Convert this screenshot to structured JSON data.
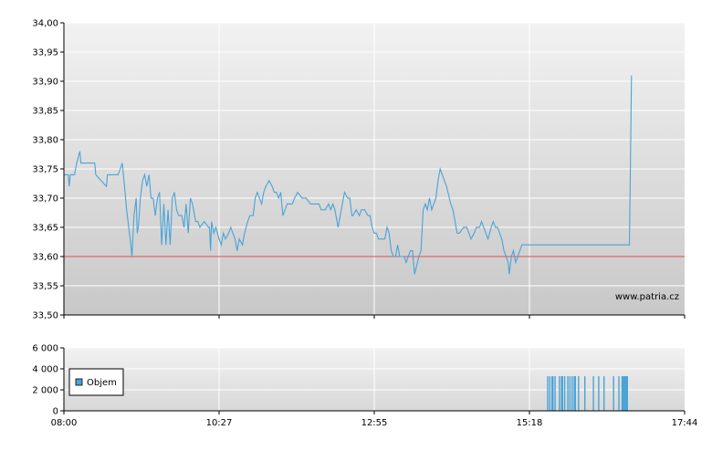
{
  "watermark": "www.patria.cz",
  "colors": {
    "price_line": "#4aa3d6",
    "reference_line": "#e05050",
    "volume_bar": "#4aa3d6",
    "plot_bg_top": "#f2f2f2",
    "plot_bg_bottom": "#c8c8c8",
    "grid": "#ffffff"
  },
  "chart_data": [
    {
      "type": "line",
      "name": "price",
      "x_ticks": [
        "08:00",
        "10:27",
        "12:55",
        "15:18",
        "17:44"
      ],
      "y_ticks": [
        "33,50",
        "33,55",
        "33,60",
        "33,65",
        "33,70",
        "33,75",
        "33,80",
        "33,85",
        "33,90",
        "33,95",
        "34,00"
      ],
      "ylim": [
        33.5,
        34.0
      ],
      "reference_value": 33.6,
      "x_unit": "minutes after 08:00",
      "points": [
        [
          0,
          33.74
        ],
        [
          4,
          33.74
        ],
        [
          5,
          33.72
        ],
        [
          6,
          33.74
        ],
        [
          10,
          33.74
        ],
        [
          12,
          33.76
        ],
        [
          15,
          33.78
        ],
        [
          16,
          33.76
        ],
        [
          25,
          33.76
        ],
        [
          29,
          33.76
        ],
        [
          30,
          33.74
        ],
        [
          40,
          33.72
        ],
        [
          41,
          33.74
        ],
        [
          48,
          33.74
        ],
        [
          51,
          33.74
        ],
        [
          53,
          33.75
        ],
        [
          55,
          33.76
        ],
        [
          57,
          33.72
        ],
        [
          59,
          33.68
        ],
        [
          63,
          33.62
        ],
        [
          64,
          33.6
        ],
        [
          66,
          33.67
        ],
        [
          68,
          33.7
        ],
        [
          69,
          33.64
        ],
        [
          70,
          33.65
        ],
        [
          72,
          33.7
        ],
        [
          74,
          33.73
        ],
        [
          76,
          33.74
        ],
        [
          78,
          33.72
        ],
        [
          80,
          33.74
        ],
        [
          82,
          33.7
        ],
        [
          84,
          33.7
        ],
        [
          86,
          33.67
        ],
        [
          88,
          33.7
        ],
        [
          90,
          33.71
        ],
        [
          92,
          33.62
        ],
        [
          94,
          33.69
        ],
        [
          96,
          33.62
        ],
        [
          98,
          33.68
        ],
        [
          100,
          33.62
        ],
        [
          102,
          33.7
        ],
        [
          104,
          33.71
        ],
        [
          106,
          33.68
        ],
        [
          108,
          33.67
        ],
        [
          111,
          33.67
        ],
        [
          113,
          33.65
        ],
        [
          115,
          33.69
        ],
        [
          117,
          33.64
        ],
        [
          119,
          33.7
        ],
        [
          121,
          33.69
        ],
        [
          124,
          33.66
        ],
        [
          126,
          33.66
        ],
        [
          128,
          33.65
        ],
        [
          132,
          33.66
        ],
        [
          136,
          33.65
        ],
        [
          137,
          33.65
        ],
        [
          138,
          33.61
        ],
        [
          139,
          33.66
        ],
        [
          141,
          33.64
        ],
        [
          143,
          33.65
        ],
        [
          146,
          33.63
        ],
        [
          148,
          33.62
        ],
        [
          150,
          33.64
        ],
        [
          152,
          33.63
        ],
        [
          155,
          33.64
        ],
        [
          157,
          33.65
        ],
        [
          159,
          33.64
        ],
        [
          161,
          33.63
        ],
        [
          163,
          33.61
        ],
        [
          165,
          33.63
        ],
        [
          168,
          33.62
        ],
        [
          170,
          33.64
        ],
        [
          173,
          33.66
        ],
        [
          175,
          33.67
        ],
        [
          178,
          33.67
        ],
        [
          180,
          33.7
        ],
        [
          182,
          33.71
        ],
        [
          184,
          33.7
        ],
        [
          186,
          33.69
        ],
        [
          188,
          33.71
        ],
        [
          190,
          33.72
        ],
        [
          193,
          33.73
        ],
        [
          196,
          33.72
        ],
        [
          198,
          33.71
        ],
        [
          200,
          33.71
        ],
        [
          202,
          33.7
        ],
        [
          204,
          33.71
        ],
        [
          206,
          33.67
        ],
        [
          208,
          33.68
        ],
        [
          210,
          33.69
        ],
        [
          212,
          33.69
        ],
        [
          215,
          33.69
        ],
        [
          217,
          33.7
        ],
        [
          220,
          33.71
        ],
        [
          224,
          33.7
        ],
        [
          228,
          33.7
        ],
        [
          232,
          33.69
        ],
        [
          236,
          33.69
        ],
        [
          240,
          33.69
        ],
        [
          242,
          33.68
        ],
        [
          246,
          33.68
        ],
        [
          249,
          33.69
        ],
        [
          251,
          33.68
        ],
        [
          253,
          33.69
        ],
        [
          255,
          33.68
        ],
        [
          258,
          33.65
        ],
        [
          260,
          33.67
        ],
        [
          262,
          33.69
        ],
        [
          264,
          33.71
        ],
        [
          267,
          33.7
        ],
        [
          269,
          33.7
        ],
        [
          271,
          33.67
        ],
        [
          272,
          33.67
        ],
        [
          275,
          33.68
        ],
        [
          278,
          33.67
        ],
        [
          280,
          33.68
        ],
        [
          283,
          33.68
        ],
        [
          286,
          33.67
        ],
        [
          288,
          33.67
        ],
        [
          290,
          33.65
        ],
        [
          292,
          33.64
        ],
        [
          294,
          33.64
        ],
        [
          296,
          33.63
        ],
        [
          298,
          33.63
        ],
        [
          302,
          33.63
        ],
        [
          304,
          33.65
        ],
        [
          306,
          33.64
        ],
        [
          308,
          33.61
        ],
        [
          310,
          33.6
        ],
        [
          312,
          33.6
        ],
        [
          314,
          33.62
        ],
        [
          316,
          33.6
        ],
        [
          318,
          33.6
        ],
        [
          320,
          33.6
        ],
        [
          322,
          33.59
        ],
        [
          324,
          33.6
        ],
        [
          326,
          33.61
        ],
        [
          328,
          33.61
        ],
        [
          330,
          33.57
        ],
        [
          334,
          33.6
        ],
        [
          336,
          33.61
        ],
        [
          338,
          33.68
        ],
        [
          340,
          33.69
        ],
        [
          342,
          33.68
        ],
        [
          344,
          33.7
        ],
        [
          346,
          33.68
        ],
        [
          348,
          33.69
        ],
        [
          350,
          33.7
        ],
        [
          352,
          33.73
        ],
        [
          354,
          33.75
        ],
        [
          356,
          33.74
        ],
        [
          358,
          33.73
        ],
        [
          360,
          33.72
        ],
        [
          364,
          33.69
        ],
        [
          366,
          33.68
        ],
        [
          368,
          33.66
        ],
        [
          370,
          33.64
        ],
        [
          372,
          33.64
        ],
        [
          376,
          33.65
        ],
        [
          379,
          33.65
        ],
        [
          381,
          33.64
        ],
        [
          383,
          33.63
        ],
        [
          386,
          33.64
        ],
        [
          388,
          33.65
        ],
        [
          391,
          33.65
        ],
        [
          393,
          33.66
        ],
        [
          395,
          33.65
        ],
        [
          397,
          33.64
        ],
        [
          399,
          33.63
        ],
        [
          402,
          33.65
        ],
        [
          404,
          33.66
        ],
        [
          406,
          33.65
        ],
        [
          408,
          33.65
        ],
        [
          410,
          33.64
        ],
        [
          412,
          33.63
        ],
        [
          414,
          33.61
        ],
        [
          416,
          33.6
        ],
        [
          418,
          33.59
        ],
        [
          419,
          33.57
        ],
        [
          421,
          33.6
        ],
        [
          423,
          33.61
        ],
        [
          425,
          33.59
        ],
        [
          427,
          33.6
        ],
        [
          431,
          33.62
        ],
        [
          435,
          33.62
        ],
        [
          445,
          33.62
        ],
        [
          465,
          33.62
        ],
        [
          485,
          33.62
        ],
        [
          510,
          33.62
        ],
        [
          528,
          33.62
        ],
        [
          532,
          33.62
        ],
        [
          533,
          33.75
        ],
        [
          534,
          33.91
        ]
      ]
    },
    {
      "type": "bar",
      "name": "volume",
      "legend": [
        "Objem"
      ],
      "x_ticks": [
        "08:00",
        "10:27",
        "12:55",
        "15:18",
        "17:44"
      ],
      "y_ticks": [
        "0",
        "2 000",
        "4 000",
        "6 000"
      ],
      "ylim": [
        0,
        6000
      ],
      "x_unit": "minutes after 08:00",
      "bars": [
        [
          455,
          3300
        ],
        [
          457,
          3300
        ],
        [
          459,
          3300
        ],
        [
          460,
          3300
        ],
        [
          462,
          3300
        ],
        [
          466,
          3300
        ],
        [
          468,
          3300
        ],
        [
          469,
          3300
        ],
        [
          471,
          3300
        ],
        [
          474,
          3300
        ],
        [
          476,
          3300
        ],
        [
          478,
          3300
        ],
        [
          480,
          3300
        ],
        [
          481,
          3300
        ],
        [
          484,
          3300
        ],
        [
          490,
          3300
        ],
        [
          498,
          3300
        ],
        [
          503,
          3300
        ],
        [
          508,
          3300
        ],
        [
          517,
          3300
        ],
        [
          522,
          3300
        ],
        [
          525,
          3300
        ],
        [
          526,
          3300
        ],
        [
          527,
          3300
        ],
        [
          528,
          3300
        ],
        [
          529,
          3300
        ],
        [
          530,
          3300
        ]
      ]
    }
  ]
}
